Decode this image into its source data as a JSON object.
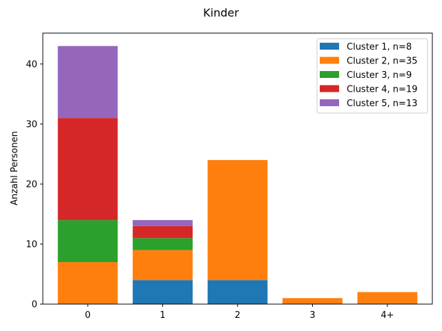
{
  "chart_data": {
    "type": "bar",
    "stacked": true,
    "title": "Kinder",
    "xlabel": "",
    "ylabel": "Anzahl Personen",
    "categories": [
      "0",
      "1",
      "2",
      "3",
      "4+"
    ],
    "ylim": [
      0,
      45.15
    ],
    "yticks": [
      0,
      10,
      20,
      30,
      40
    ],
    "grid": false,
    "legend_position": "top-right",
    "series": [
      {
        "name": "Cluster 1, n=8",
        "color": "#1f77b4",
        "values": [
          0,
          4,
          4,
          0,
          0
        ]
      },
      {
        "name": "Cluster 2, n=35",
        "color": "#ff7f0e",
        "values": [
          7,
          5,
          20,
          1,
          2
        ]
      },
      {
        "name": "Cluster 3, n=9",
        "color": "#2ca02c",
        "values": [
          7,
          2,
          0,
          0,
          0
        ]
      },
      {
        "name": "Cluster 4, n=19",
        "color": "#d62728",
        "values": [
          17,
          2,
          0,
          0,
          0
        ]
      },
      {
        "name": "Cluster 5, n=13",
        "color": "#9467bd",
        "values": [
          12,
          1,
          0,
          0,
          0
        ]
      }
    ]
  }
}
